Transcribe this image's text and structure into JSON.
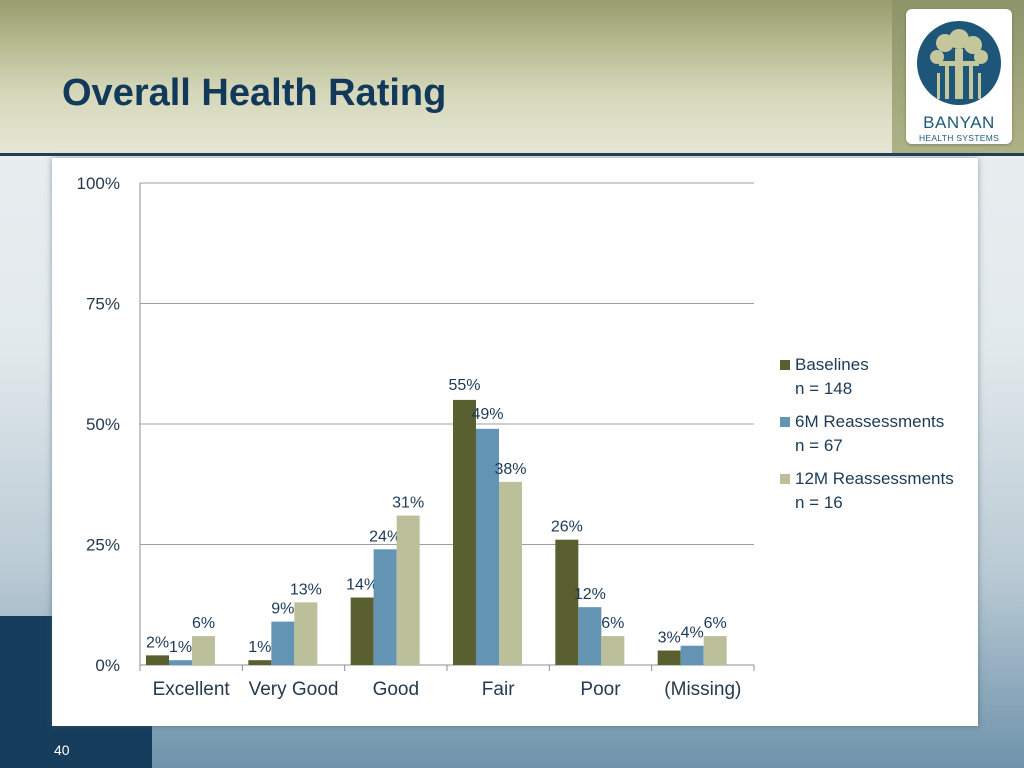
{
  "slide": {
    "title": "Overall Health Rating",
    "page_number": "40"
  },
  "logo": {
    "name": "BANYAN",
    "subtitle": "HEALTH SYSTEMS"
  },
  "colors": {
    "baselines": "#5a5f30",
    "six_month": "#6494b4",
    "twelve_month": "#bcc09a",
    "title": "#12385a",
    "dark_block": "#173d5c"
  },
  "chart_data": {
    "type": "bar",
    "categories": [
      "Excellent",
      "Very Good",
      "Good",
      "Fair",
      "Poor",
      "(Missing)"
    ],
    "series": [
      {
        "name": "Baselines",
        "n_label": "n = 148",
        "values": [
          2,
          1,
          14,
          55,
          26,
          3
        ],
        "color": "#5a5f30"
      },
      {
        "name": "6M Reassessments",
        "n_label": "n = 67",
        "values": [
          1,
          9,
          24,
          49,
          12,
          4
        ],
        "color": "#6494b4"
      },
      {
        "name": "12M Reassessments",
        "n_label": "n = 16",
        "values": [
          6,
          13,
          31,
          38,
          6,
          6
        ],
        "color": "#bcc09a"
      }
    ],
    "data_labels": [
      [
        "2%",
        "1%",
        "14%",
        "55%",
        "26%",
        "3%"
      ],
      [
        "1%",
        "9%",
        "24%",
        "49%",
        "12%",
        "4%"
      ],
      [
        "6%",
        "13%",
        "31%",
        "38%",
        "6%",
        "6%"
      ]
    ],
    "yticks": [
      "0%",
      "25%",
      "50%",
      "75%",
      "100%"
    ],
    "ytick_values": [
      0,
      25,
      50,
      75,
      100
    ],
    "ylim": [
      0,
      100
    ],
    "grid": true,
    "legend_position": "right"
  }
}
